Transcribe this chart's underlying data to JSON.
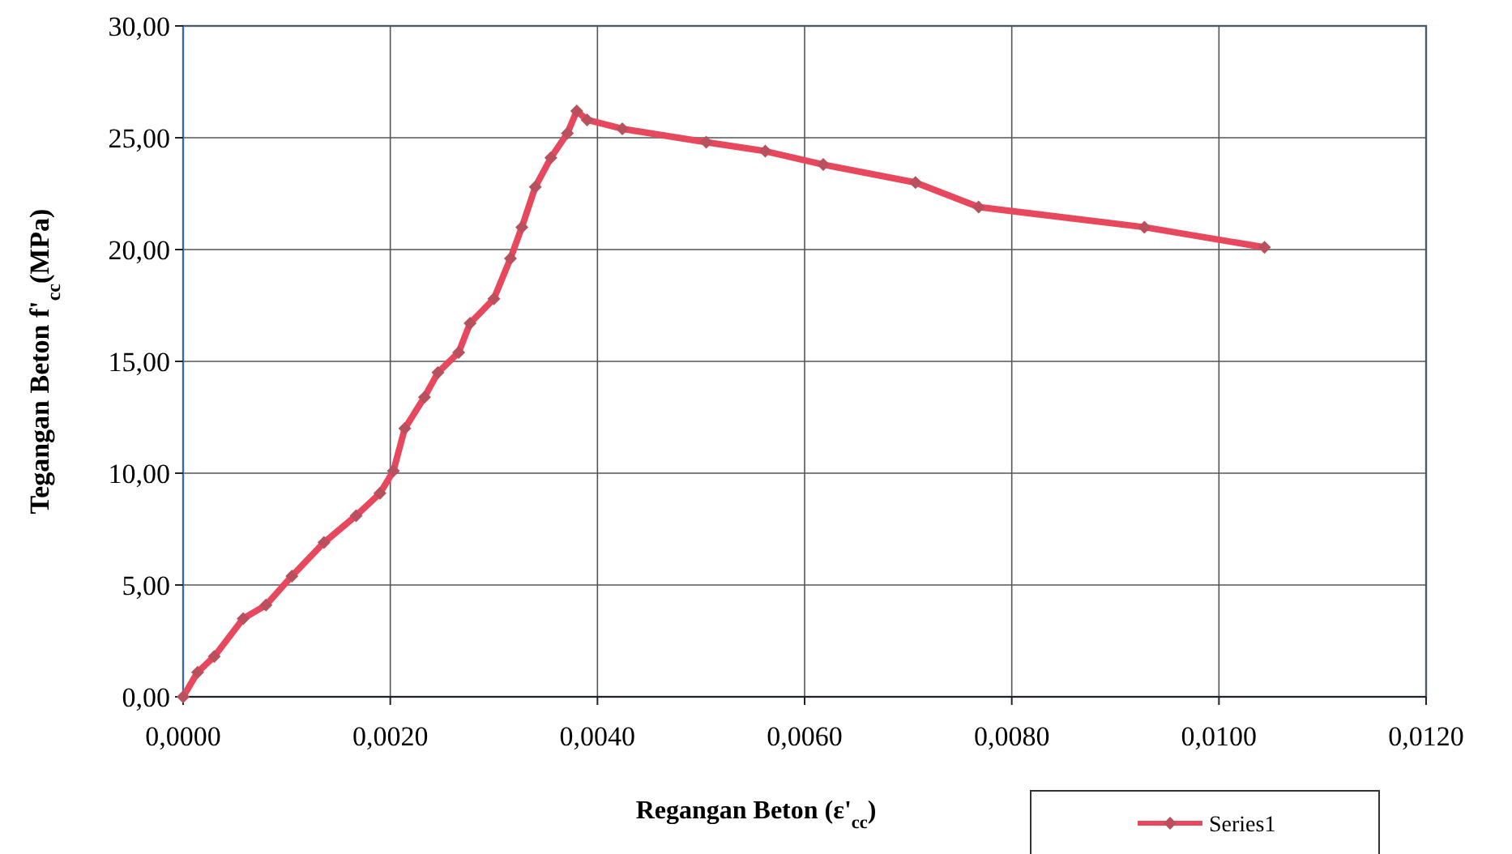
{
  "chart_data": {
    "type": "line",
    "xlabel": "Regangan Beton (ε'$_{cc}$)",
    "ylabel": "Tegangan Beton f'$_{cc}$(MPa)",
    "xlim": [
      0,
      0.012
    ],
    "ylim": [
      0,
      30
    ],
    "xticks": [
      {
        "value": 0,
        "label": "0,0000"
      },
      {
        "value": 0.002,
        "label": "0,0020"
      },
      {
        "value": 0.004,
        "label": "0,0040"
      },
      {
        "value": 0.006,
        "label": "0,0060"
      },
      {
        "value": 0.008,
        "label": "0,0080"
      },
      {
        "value": 0.01,
        "label": "0,0100"
      },
      {
        "value": 0.012,
        "label": "0,0120"
      }
    ],
    "yticks": [
      {
        "value": 0,
        "label": "0,00"
      },
      {
        "value": 5,
        "label": "5,00"
      },
      {
        "value": 10,
        "label": "10,00"
      },
      {
        "value": 15,
        "label": "15,00"
      },
      {
        "value": 20,
        "label": "20,00"
      },
      {
        "value": 25,
        "label": "25,00"
      },
      {
        "value": 30,
        "label": "30,00"
      }
    ],
    "grid": true,
    "legend": "bottom right",
    "marker": "diamond",
    "line_style": "solid",
    "series": [
      {
        "name": "Series1",
        "color": "#e8485e",
        "x": [
          0,
          0.00014,
          0.0003,
          0.00058,
          0.0008,
          0.00105,
          0.00136,
          0.00167,
          0.0019,
          0.00203,
          0.00214,
          0.00233,
          0.00246,
          0.00266,
          0.00277,
          0.003,
          0.00316,
          0.00327,
          0.0034,
          0.00355,
          0.00371,
          0.0038,
          0.0039,
          0.00424,
          0.00505,
          0.00562,
          0.00618,
          0.00707,
          0.00768,
          0.00928,
          0.01044
        ],
        "values": [
          0,
          1.1,
          1.8,
          3.5,
          4.1,
          5.4,
          6.9,
          8.1,
          9.1,
          10.1,
          12.0,
          13.4,
          14.5,
          15.4,
          16.7,
          17.8,
          19.6,
          21.0,
          22.8,
          24.1,
          25.2,
          26.2,
          25.8,
          25.4,
          24.8,
          24.4,
          23.8,
          23.0,
          21.9,
          21.0,
          20.1
        ]
      }
    ]
  }
}
